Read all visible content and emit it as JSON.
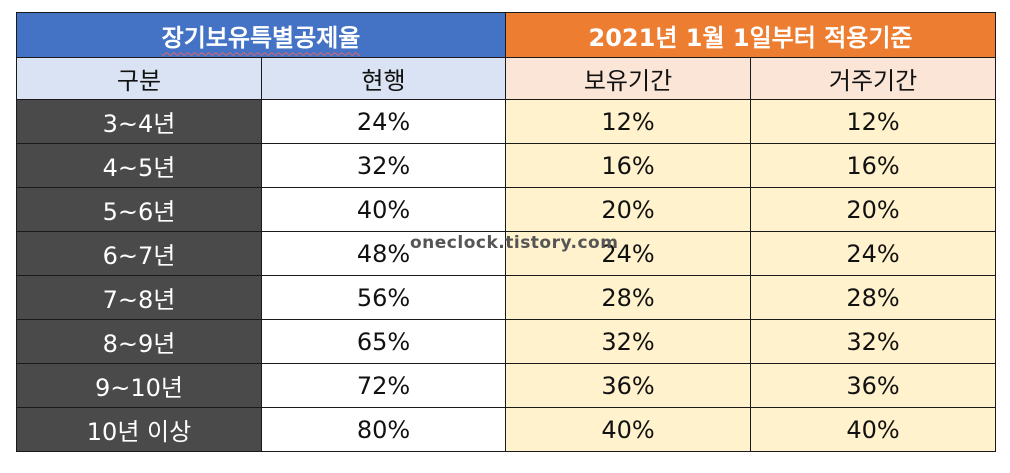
{
  "header": {
    "left_title": "장기보유특별공제율",
    "right_title": "2021년 1월 1일부터 적용기준"
  },
  "columns": {
    "c1": "구분",
    "c2": "현행",
    "c3": "보유기간",
    "c4": "거주기간"
  },
  "rows": [
    {
      "period": "3~4년",
      "current": "24%",
      "holding": "12%",
      "residence": "12%"
    },
    {
      "period": "4~5년",
      "current": "32%",
      "holding": "16%",
      "residence": "16%"
    },
    {
      "period": "5~6년",
      "current": "40%",
      "holding": "20%",
      "residence": "20%"
    },
    {
      "period": "6~7년",
      "current": "48%",
      "holding": "24%",
      "residence": "24%"
    },
    {
      "period": "7~8년",
      "current": "56%",
      "holding": "28%",
      "residence": "28%"
    },
    {
      "period": "8~9년",
      "current": "65%",
      "holding": "32%",
      "residence": "32%"
    },
    {
      "period": "9~10년",
      "current": "72%",
      "holding": "36%",
      "residence": "36%"
    },
    {
      "period": "10년 이상",
      "current": "80%",
      "holding": "40%",
      "residence": "40%"
    }
  ],
  "watermark": "oneclock.tistory.com",
  "colors": {
    "header_left": "#4472c4",
    "header_right": "#ed7d31",
    "subheader_left": "#dae3f3",
    "subheader_right": "#fbe5d6",
    "period_cells": "#4a4a4a",
    "new_rule_cells": "#fff2cc"
  }
}
